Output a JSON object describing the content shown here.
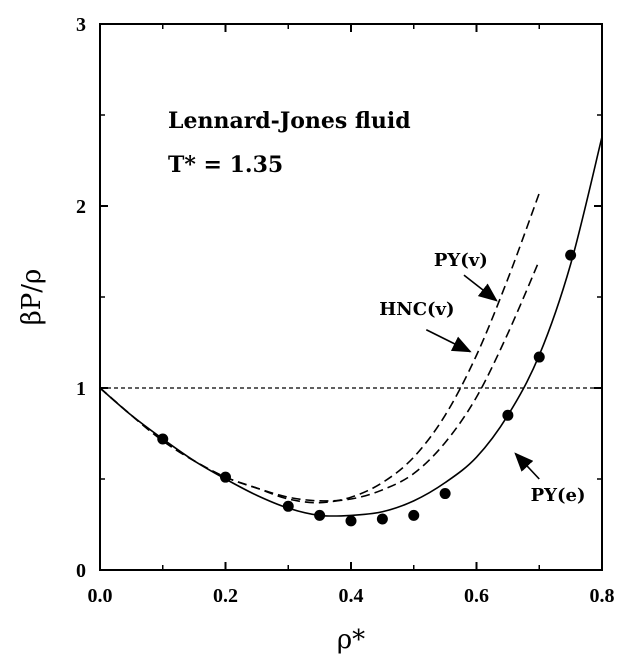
{
  "chart_data": {
    "type": "line",
    "xlabel": "ρ*",
    "ylabel": "βP/ρ",
    "xlim": [
      0.0,
      0.8
    ],
    "ylim": [
      0,
      3
    ],
    "xticks": [
      "0.0",
      "0.2",
      "0.4",
      "0.6",
      "0.8"
    ],
    "yticks": [
      "0",
      "1",
      "2",
      "3"
    ],
    "grid": false,
    "annotations": {
      "title_line1": "Lennard-Jones fluid",
      "title_line2": "T* = 1.35"
    },
    "reference_line": {
      "y": 1.0,
      "style": "dotted"
    },
    "series": [
      {
        "name": "PY(e)",
        "style": "solid",
        "x": [
          0.0,
          0.05,
          0.1,
          0.15,
          0.2,
          0.25,
          0.3,
          0.35,
          0.4,
          0.45,
          0.5,
          0.55,
          0.6,
          0.65,
          0.7,
          0.75,
          0.8
        ],
        "y": [
          1.0,
          0.85,
          0.72,
          0.6,
          0.5,
          0.41,
          0.34,
          0.3,
          0.3,
          0.32,
          0.38,
          0.48,
          0.62,
          0.85,
          1.18,
          1.68,
          2.38
        ]
      },
      {
        "name": "PY(v)",
        "style": "dashed",
        "x": [
          0.0,
          0.05,
          0.1,
          0.15,
          0.2,
          0.25,
          0.3,
          0.35,
          0.4,
          0.45,
          0.5,
          0.55,
          0.6,
          0.65,
          0.7
        ],
        "y": [
          1.0,
          0.85,
          0.71,
          0.6,
          0.51,
          0.45,
          0.4,
          0.38,
          0.39,
          0.44,
          0.53,
          0.7,
          0.95,
          1.3,
          1.7
        ]
      },
      {
        "name": "HNC(v)",
        "style": "dashed",
        "x": [
          0.0,
          0.05,
          0.1,
          0.15,
          0.2,
          0.25,
          0.3,
          0.35,
          0.4,
          0.45,
          0.5,
          0.55,
          0.6,
          0.65,
          0.7
        ],
        "y": [
          1.0,
          0.85,
          0.71,
          0.6,
          0.51,
          0.45,
          0.39,
          0.37,
          0.4,
          0.48,
          0.62,
          0.85,
          1.18,
          1.6,
          2.07
        ]
      },
      {
        "name": "simulation",
        "style": "markers",
        "x": [
          0.1,
          0.2,
          0.3,
          0.35,
          0.4,
          0.45,
          0.5,
          0.55,
          0.65,
          0.7,
          0.75
        ],
        "y": [
          0.72,
          0.51,
          0.35,
          0.3,
          0.27,
          0.28,
          0.3,
          0.42,
          0.85,
          1.17,
          1.73
        ]
      }
    ],
    "curve_labels": [
      {
        "text": "PY(v)",
        "series": "PY(v)"
      },
      {
        "text": "HNC(v)",
        "series": "HNC(v)"
      },
      {
        "text": "PY(e)",
        "series": "PY(e)"
      }
    ]
  }
}
